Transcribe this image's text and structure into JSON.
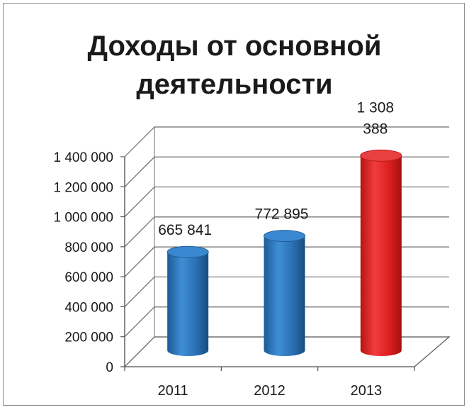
{
  "chart_data": {
    "type": "bar",
    "title": "Доходы от основной деятельности",
    "categories": [
      "2011",
      "2012",
      "2013"
    ],
    "values": [
      665841,
      772895,
      1308388
    ],
    "data_labels": [
      "665 841",
      "772 895",
      "1 308 388"
    ],
    "ylim": [
      0,
      1400000
    ],
    "yticks": [
      0,
      200000,
      400000,
      600000,
      800000,
      1000000,
      1200000,
      1400000
    ],
    "ytick_labels": [
      "0",
      "200 000",
      "400 000",
      "600 000",
      "800 000",
      "1 000 000",
      "1 200 000",
      "1 400 000"
    ],
    "bar_colors": [
      "#2e75b6",
      "#2e75b6",
      "#e02020"
    ],
    "grid": true,
    "style": "3d-cylinder",
    "legend": "none"
  }
}
